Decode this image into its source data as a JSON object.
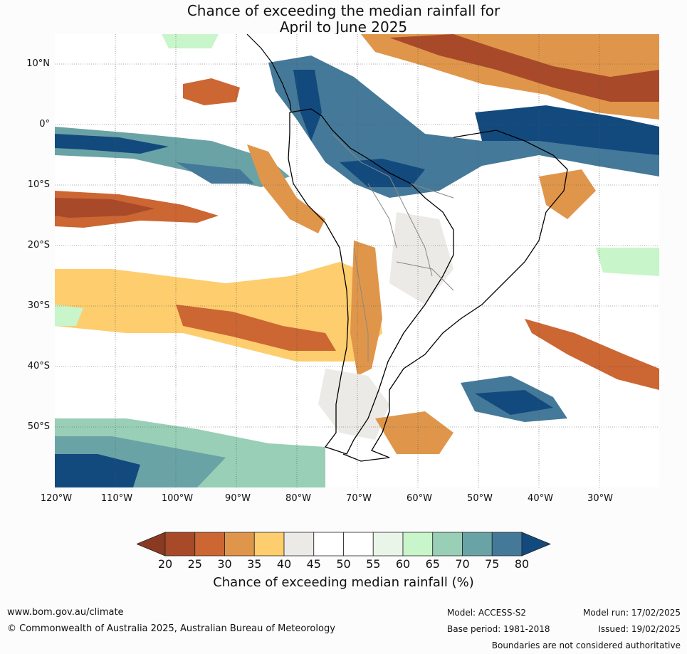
{
  "title": {
    "line1": "Chance of exceeding the median rainfall for",
    "line2": "April to June 2025"
  },
  "map": {
    "region": "South America and surrounding oceans",
    "lat_labels": [
      "10°N",
      "0°",
      "10°S",
      "20°S",
      "30°S",
      "40°S",
      "50°S"
    ],
    "lon_labels": [
      "120°W",
      "110°W",
      "100°W",
      "90°W",
      "80°W",
      "70°W",
      "60°W",
      "50°W",
      "40°W",
      "30°W"
    ],
    "gridlines": true
  },
  "colorbar": {
    "ticks": [
      "20",
      "25",
      "30",
      "35",
      "40",
      "45",
      "50",
      "55",
      "60",
      "65",
      "70",
      "75",
      "80"
    ],
    "colors": [
      "#a84a2a",
      "#cc6633",
      "#e0964a",
      "#fdcd6e",
      "#eceae6",
      "#ffffff",
      "#ffffff",
      "#e9f5e9",
      "#c8f5c9",
      "#98cfb6",
      "#6aa3a6",
      "#44799a"
    ],
    "under_color": "#8a3a22",
    "over_color": "#124a7e",
    "label": "Chance of exceeding median rainfall (%)"
  },
  "footer": {
    "website": "www.bom.gov.au/climate",
    "copyright": "© Commonwealth of Australia 2025, Australian Bureau of Meteorology",
    "model": "Model: ACCESS-S2",
    "base_period": "Base period: 1981-2018",
    "model_run": "Model run: 17/02/2025",
    "issued": "Issued: 19/02/2025",
    "disclaimer": "Boundaries are not considered authoritative"
  }
}
